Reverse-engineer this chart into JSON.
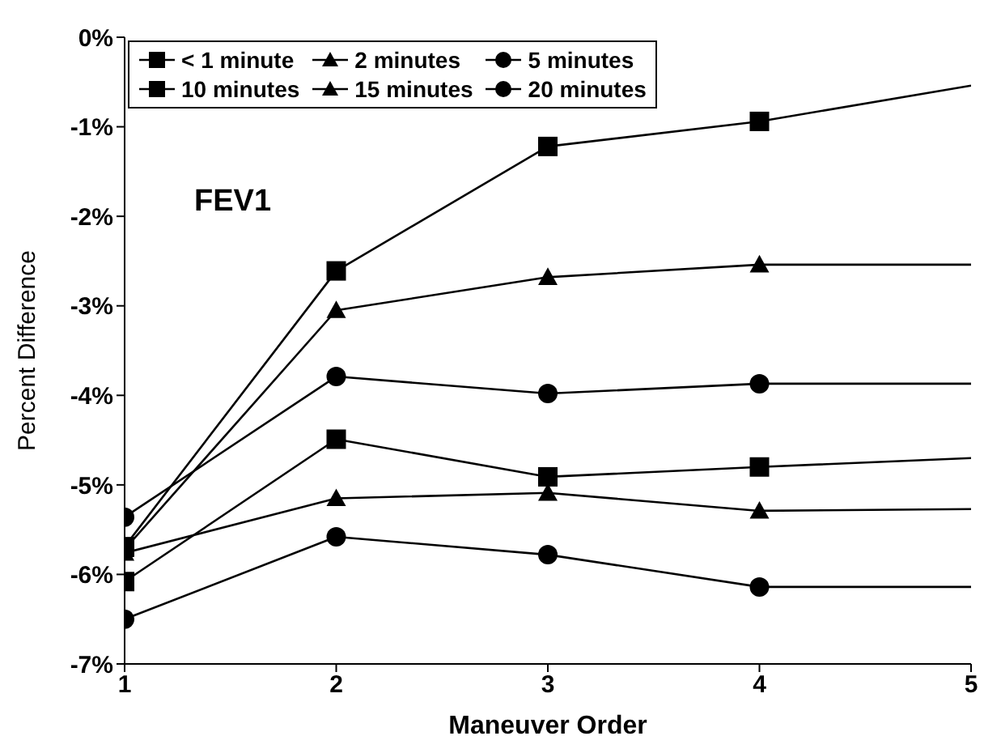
{
  "chart_data": {
    "type": "line",
    "xlabel": "Maneuver Order",
    "ylabel": "Percent Difference",
    "annotations": [
      "FEV1"
    ],
    "x": [
      1,
      2,
      3,
      4,
      5
    ],
    "xlim": [
      1,
      5
    ],
    "xticks": [
      1,
      2,
      3,
      4,
      5
    ],
    "ylim": [
      -7,
      0
    ],
    "yticks": [
      {
        "value": 0,
        "label": "0%"
      },
      {
        "value": -1,
        "label": "-1%"
      },
      {
        "value": -2,
        "label": "-2%"
      },
      {
        "value": -3,
        "label": "-3%"
      },
      {
        "value": -4,
        "label": "-4%"
      },
      {
        "value": -5,
        "label": "-5%"
      },
      {
        "value": -6,
        "label": "-6%"
      },
      {
        "value": -7,
        "label": "-7%"
      }
    ],
    "grid": false,
    "legend": "top left",
    "line_style": "solid",
    "series": [
      {
        "name": "< 1 minute",
        "color": "#000000",
        "marker": "square",
        "values": [
          -5.69,
          -2.61,
          -1.22,
          -0.94,
          -0.54
        ]
      },
      {
        "name": "2 minutes",
        "color": "#000000",
        "marker": "triangle",
        "values": [
          -5.72,
          -3.05,
          -2.68,
          -2.54,
          -2.54
        ]
      },
      {
        "name": "5 minutes",
        "color": "#000000",
        "marker": "circle",
        "values": [
          -5.36,
          -3.79,
          -3.98,
          -3.87,
          -3.87
        ]
      },
      {
        "name": "10 minutes",
        "color": "#000000",
        "marker": "square",
        "values": [
          -6.08,
          -4.49,
          -4.91,
          -4.8,
          -4.7
        ]
      },
      {
        "name": "15 minutes",
        "color": "#000000",
        "marker": "triangle",
        "values": [
          -5.76,
          -5.15,
          -5.09,
          -5.29,
          -5.27
        ]
      },
      {
        "name": "20 minutes",
        "color": "#000000",
        "marker": "circle",
        "values": [
          -6.5,
          -5.58,
          -5.78,
          -6.14,
          -6.14
        ]
      }
    ]
  }
}
